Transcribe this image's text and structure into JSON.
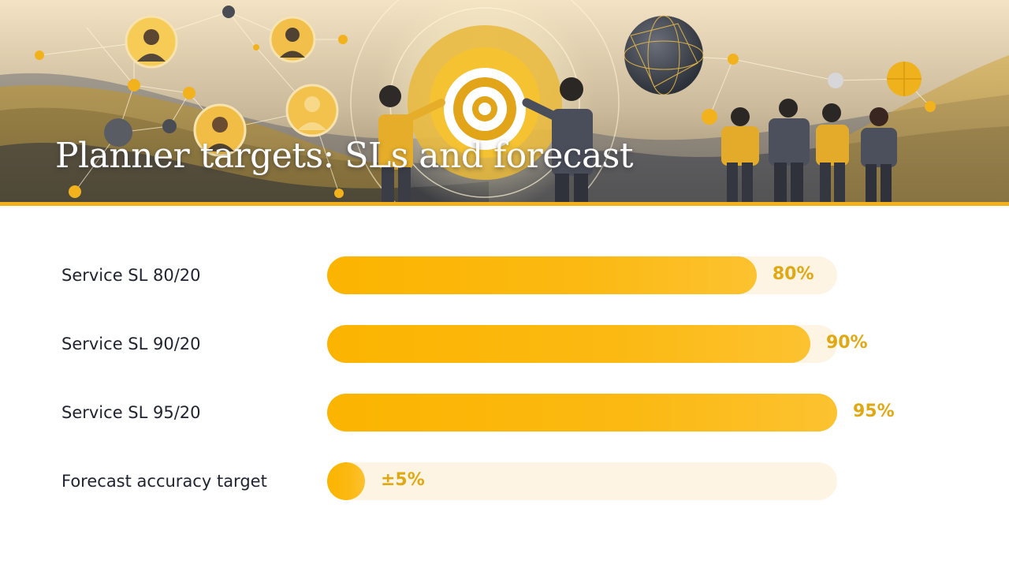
{
  "title": "Planner targets: SLs and forecast",
  "colors": {
    "bar": "#fbb400",
    "track": "#fdf4e3",
    "value_text": "#e0a812",
    "accent_line": "#f2b21d"
  },
  "chart_data": {
    "type": "bar",
    "orientation": "horizontal",
    "categories": [
      "Service SL 80/20",
      "Service SL 90/20",
      "Service SL 95/20",
      "Forecast accuracy target"
    ],
    "values": [
      80,
      90,
      95,
      5
    ],
    "value_labels": [
      "80%",
      "90%",
      "95%",
      "±5%"
    ],
    "xlim": [
      0,
      95
    ],
    "grid": false,
    "legend": "none"
  }
}
